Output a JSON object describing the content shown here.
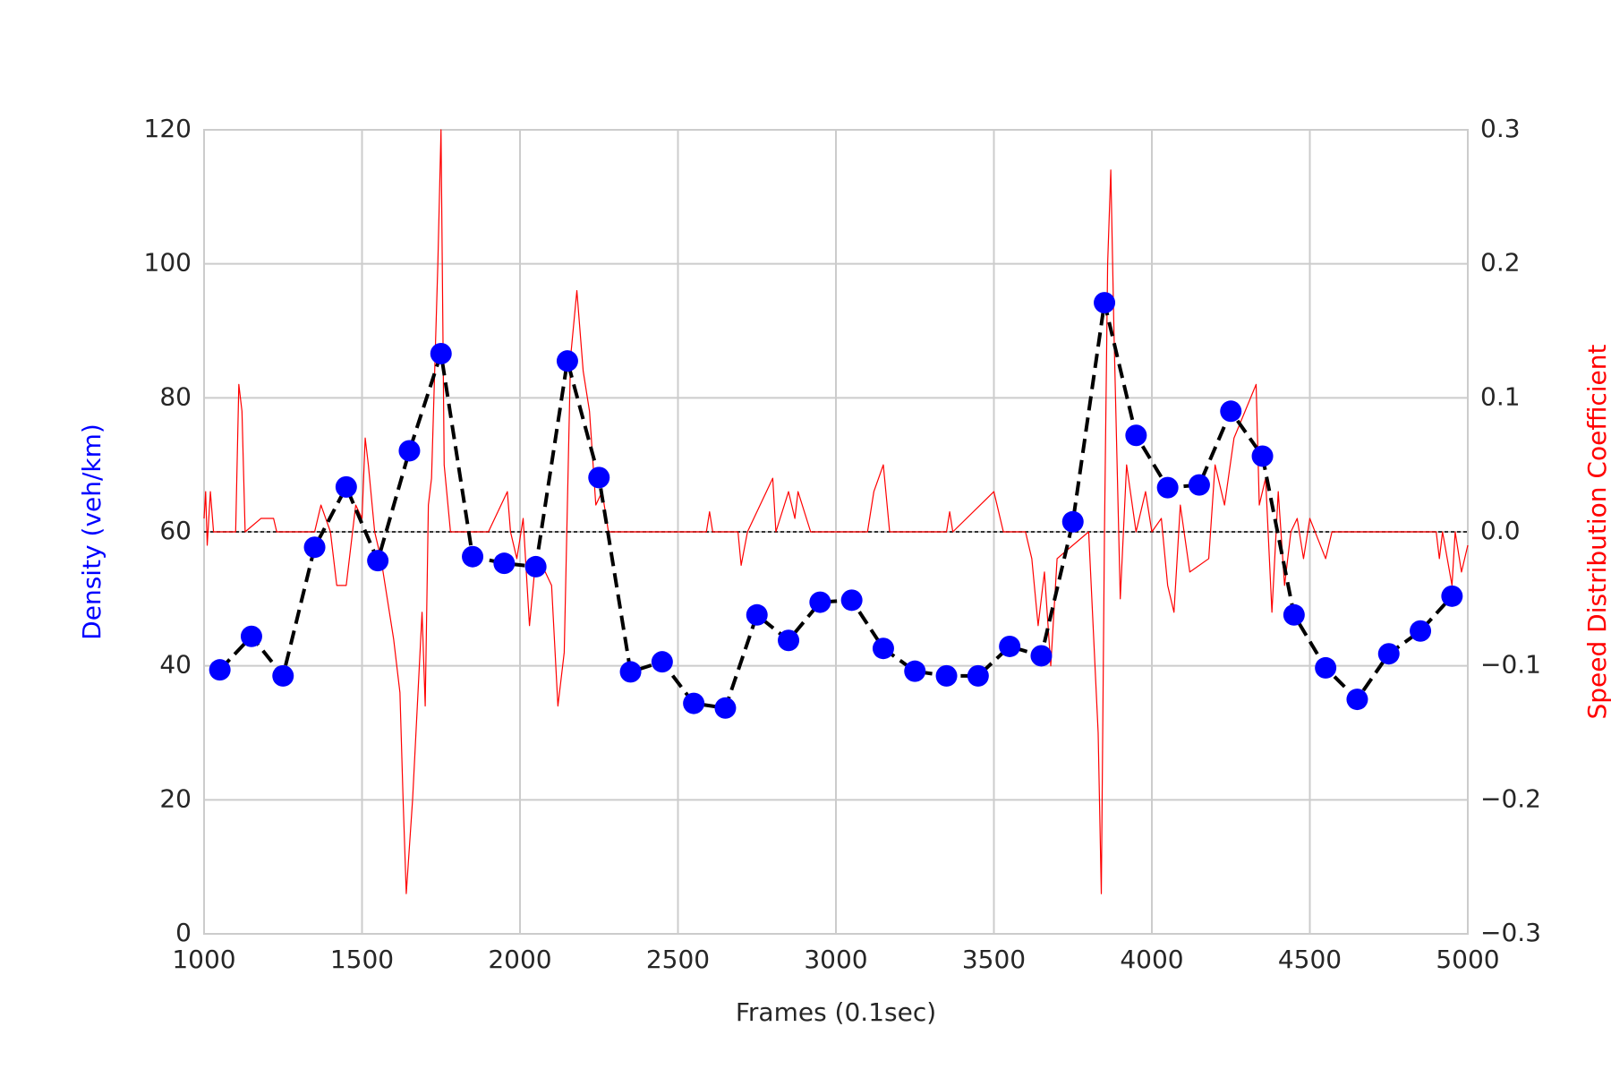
{
  "chart_data": {
    "type": "line",
    "xlabel": "Frames (0.1sec)",
    "ylabel": "Density (veh/km)",
    "y2label": "Speed Distribution Coefficient",
    "ylabel_color": "#0000ff",
    "y2label_color": "#ff0000",
    "xlim": [
      1000,
      5000
    ],
    "xticks": [
      1000,
      1500,
      2000,
      2500,
      3000,
      3500,
      4000,
      4500,
      5000
    ],
    "ylim": [
      0,
      120
    ],
    "yticks": [
      0,
      20,
      40,
      60,
      80,
      100,
      120
    ],
    "y2lim": [
      -0.3,
      0.3
    ],
    "y2ticks": [
      {
        "value": -0.3,
        "label": "−0.3"
      },
      {
        "value": -0.2,
        "label": "−0.2"
      },
      {
        "value": -0.1,
        "label": "−0.1"
      },
      {
        "value": 0,
        "label": "0.0"
      },
      0.1,
      0.2,
      0.3
    ],
    "y2_hline": 0,
    "grid": true,
    "series": [
      {
        "color": "#000000",
        "marker_color": "#0000ff",
        "line_style": "dashed",
        "x": [
          1050,
          1150,
          1250,
          1350,
          1450,
          1550,
          1650,
          1750,
          1850,
          1950,
          2050,
          2150,
          2250,
          2350,
          2450,
          2550,
          2650,
          2750,
          2850,
          2950,
          3050,
          3150,
          3250,
          3350,
          3450,
          3550,
          3650,
          3750,
          3850,
          3950,
          4050,
          4150,
          4250,
          4350,
          4450,
          4550,
          4650,
          4750,
          4850,
          4950
        ],
        "values": [
          39.4,
          44.4,
          38.5,
          57.7,
          66.7,
          55.7,
          72.1,
          86.6,
          56.3,
          55.3,
          54.8,
          85.5,
          68.1,
          39.1,
          40.6,
          34.4,
          33.7,
          47.6,
          43.8,
          49.5,
          49.8,
          42.6,
          39.2,
          38.5,
          38.5,
          42.9,
          41.5,
          61.5,
          94.2,
          74.4,
          66.6,
          67.0,
          78.0,
          71.3,
          47.6,
          39.7,
          35.0,
          41.8,
          45.2,
          50.4
        ]
      },
      {
        "color": "#ff0000",
        "axis": "y2",
        "x": [
          1000,
          1005,
          1010,
          1020,
          1030,
          1100,
          1110,
          1120,
          1130,
          1180,
          1220,
          1230,
          1350,
          1370,
          1400,
          1420,
          1450,
          1480,
          1500,
          1510,
          1520,
          1540,
          1560,
          1600,
          1620,
          1630,
          1640,
          1660,
          1690,
          1700,
          1710,
          1720,
          1740,
          1750,
          1760,
          1780,
          1850,
          1900,
          1960,
          1970,
          1990,
          2010,
          2030,
          2050,
          2080,
          2100,
          2120,
          2140,
          2160,
          2180,
          2200,
          2220,
          2240,
          2260,
          2280,
          2400,
          2500,
          2590,
          2600,
          2610,
          2690,
          2700,
          2720,
          2800,
          2810,
          2850,
          2870,
          2880,
          2920,
          3100,
          3120,
          3150,
          3170,
          3350,
          3360,
          3370,
          3500,
          3530,
          3600,
          3620,
          3640,
          3660,
          3680,
          3700,
          3800,
          3830,
          3840,
          3850,
          3860,
          3870,
          3880,
          3900,
          3920,
          3950,
          3980,
          4000,
          4030,
          4050,
          4070,
          4090,
          4120,
          4180,
          4200,
          4230,
          4260,
          4330,
          4340,
          4360,
          4380,
          4400,
          4420,
          4440,
          4460,
          4480,
          4500,
          4550,
          4570,
          4600,
          4800,
          4900,
          4910,
          4920,
          4950,
          4960,
          4980,
          5000
        ],
        "values": [
          0.01,
          0.03,
          -0.01,
          0.03,
          0,
          0,
          0.11,
          0.09,
          0,
          0.01,
          0.01,
          0,
          0,
          0.02,
          0,
          -0.04,
          -0.04,
          0.02,
          0.01,
          0.07,
          0.05,
          0,
          -0.02,
          -0.08,
          -0.12,
          -0.2,
          -0.27,
          -0.2,
          -0.06,
          -0.13,
          0.02,
          0.04,
          0.2,
          0.3,
          0.05,
          0,
          0,
          0,
          0.03,
          0,
          -0.02,
          0.01,
          -0.07,
          -0.02,
          -0.03,
          -0.04,
          -0.13,
          -0.09,
          0.13,
          0.18,
          0.12,
          0.09,
          0.02,
          0.03,
          0,
          0,
          0,
          0,
          0.015,
          0,
          0,
          -0.025,
          0,
          0.04,
          0,
          0.03,
          0.01,
          0.03,
          0,
          0,
          0.03,
          0.05,
          0,
          0,
          0.015,
          0,
          0.03,
          0,
          0,
          -0.02,
          -0.07,
          -0.03,
          -0.1,
          -0.02,
          0,
          -0.15,
          -0.27,
          0,
          0.2,
          0.27,
          0.15,
          -0.05,
          0.05,
          0,
          0.03,
          0,
          0.01,
          -0.04,
          -0.06,
          0.02,
          -0.03,
          -0.02,
          0.05,
          0.02,
          0.07,
          0.11,
          0.02,
          0.04,
          -0.06,
          0.03,
          -0.04,
          0,
          0.01,
          -0.02,
          0.01,
          -0.02,
          0,
          0,
          0,
          0,
          -0.02,
          0,
          -0.04,
          0,
          -0.03,
          -0.01
        ]
      }
    ]
  }
}
